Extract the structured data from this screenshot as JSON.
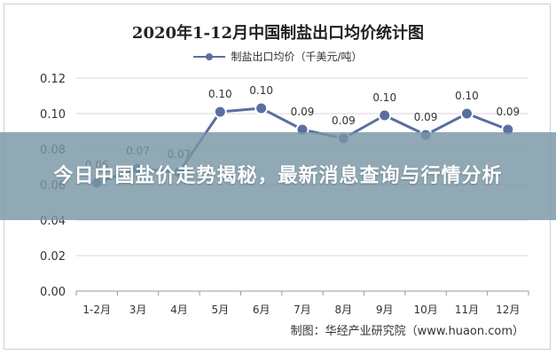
{
  "chart_data": {
    "type": "line",
    "title": "2020年1-12月中国制盐出口均价统计图",
    "categories": [
      "1-2月",
      "3月",
      "4月",
      "5月",
      "6月",
      "7月",
      "8月",
      "9月",
      "10月",
      "11月",
      "12月"
    ],
    "series": [
      {
        "name": "制盐出口均价（千美元/吨）",
        "values": [
          0.06,
          0.07,
          0.07,
          0.1,
          0.1,
          0.09,
          0.09,
          0.1,
          0.09,
          0.1,
          0.09
        ],
        "point_y": [
          0.061,
          0.069,
          0.067,
          0.101,
          0.103,
          0.091,
          0.086,
          0.099,
          0.088,
          0.1,
          0.091
        ],
        "color": "#5a6fa0"
      }
    ],
    "ylim": [
      0,
      0.12
    ],
    "yticks": [
      "0.00",
      "0.02",
      "0.04",
      "0.06",
      "0.08",
      "0.10",
      "0.12"
    ],
    "xlabel": "",
    "ylabel": "",
    "grid": true,
    "legend_position": "top-center",
    "source": "制图：华经产业研究院（www.huaon.com）"
  },
  "overlay": {
    "headline": "今日中国盐价走势揭秘，最新消息查询与行情分析"
  }
}
